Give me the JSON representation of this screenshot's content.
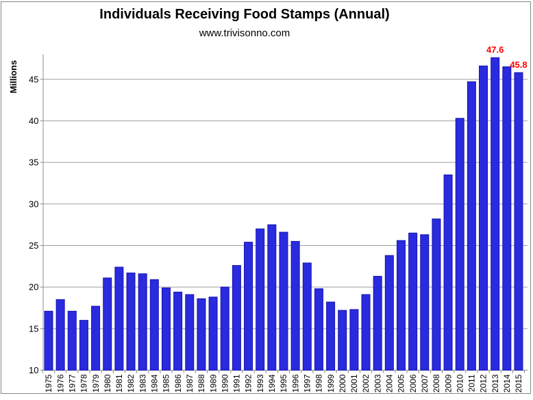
{
  "header": {
    "title": "Individuals Receiving Food Stamps (Annual)",
    "subtitle": "www.trivisonno.com"
  },
  "chart_data": {
    "type": "bar",
    "title": "Individuals Receiving Food Stamps (Annual)",
    "subtitle": "www.trivisonno.com",
    "xlabel": "",
    "ylabel": "Millions",
    "ylim": [
      10,
      48
    ],
    "yticks": [
      10,
      15,
      20,
      25,
      30,
      35,
      40,
      45
    ],
    "grid": true,
    "legend": "none",
    "categories": [
      1975,
      1976,
      1977,
      1978,
      1979,
      1980,
      1981,
      1982,
      1983,
      1984,
      1985,
      1986,
      1987,
      1988,
      1989,
      1990,
      1991,
      1992,
      1993,
      1994,
      1995,
      1996,
      1997,
      1998,
      1999,
      2000,
      2001,
      2002,
      2003,
      2004,
      2005,
      2006,
      2007,
      2008,
      2009,
      2010,
      2011,
      2012,
      2013,
      2014,
      2015
    ],
    "values": [
      17.1,
      18.5,
      17.1,
      16.0,
      17.7,
      21.1,
      22.4,
      21.7,
      21.6,
      20.9,
      19.9,
      19.4,
      19.1,
      18.6,
      18.8,
      20.0,
      22.6,
      25.4,
      27.0,
      27.5,
      26.6,
      25.5,
      22.9,
      19.8,
      18.2,
      17.2,
      17.3,
      19.1,
      21.3,
      23.8,
      25.6,
      26.5,
      26.3,
      28.2,
      33.5,
      40.3,
      44.7,
      46.6,
      47.6,
      46.5,
      45.8
    ],
    "annotations": [
      {
        "category": 2013,
        "label": "47.6"
      },
      {
        "category": 2015,
        "label": "45.8"
      }
    ]
  },
  "colors": {
    "bar_fill": "#2a2adf",
    "bar_border": "#1414ad",
    "annotation_text": "#ff0000",
    "gridline": "#9d9d9d",
    "axis": "#8c8c8c",
    "text": "#000000",
    "frame_border": "#858585",
    "background": "#ffffff"
  }
}
